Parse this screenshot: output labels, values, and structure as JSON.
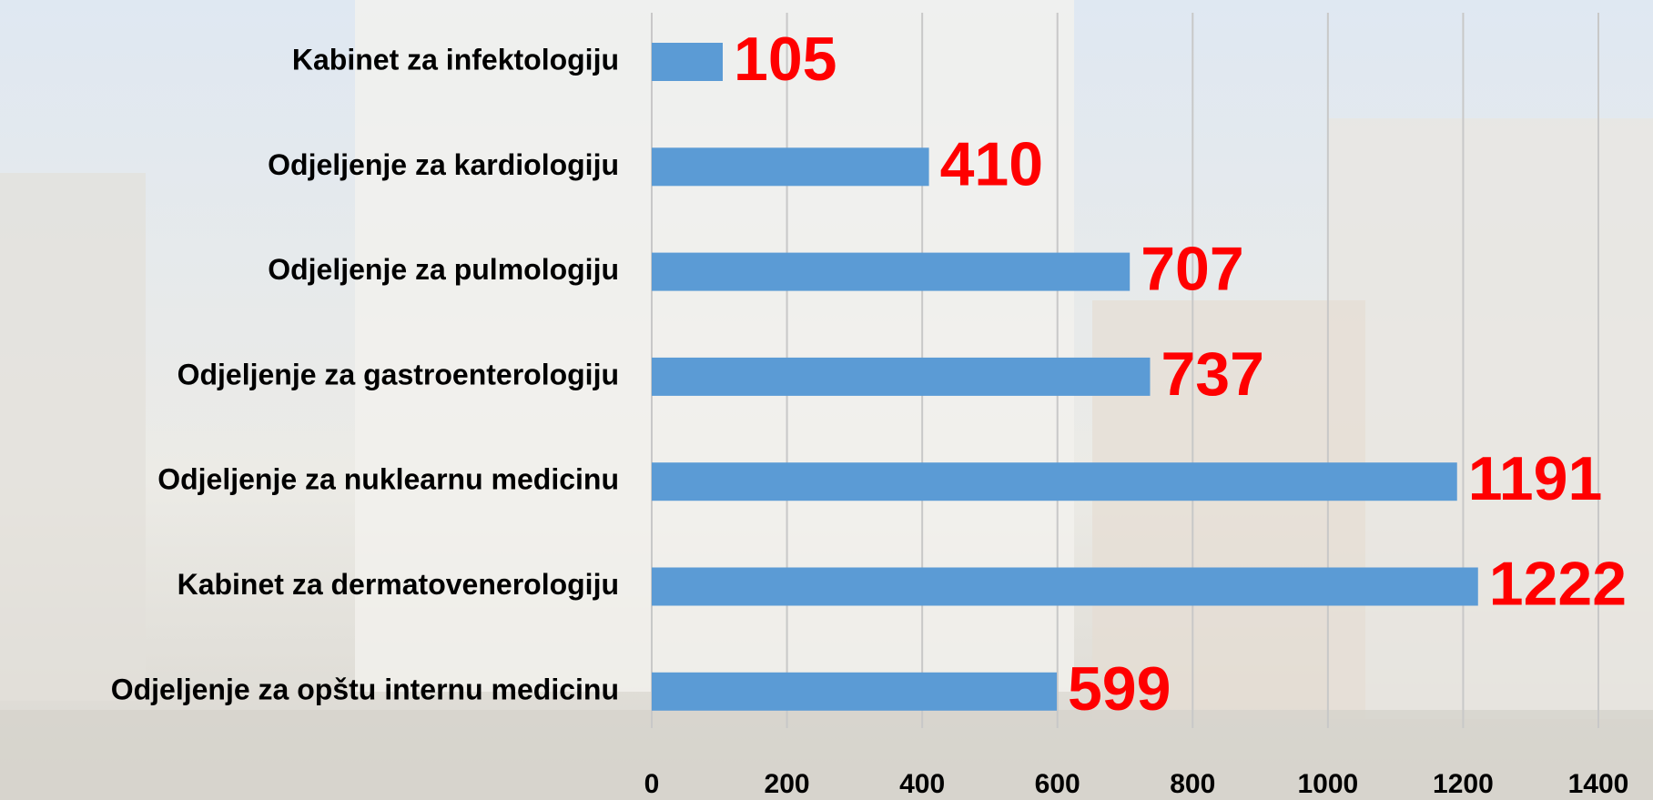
{
  "chart_data": {
    "type": "bar",
    "orientation": "horizontal",
    "categories": [
      "Kabinet za infektologiju",
      "Odjeljenje za kardiologiju",
      "Odjeljenje za pulmologiju",
      "Odjeljenje za gastroenterologiju",
      "Odjeljenje za nuklearnu medicinu",
      "Kabinet za dermatovenerologiju",
      "Odjeljenje za opštu internu medicinu"
    ],
    "values": [
      105,
      410,
      707,
      737,
      1191,
      1222,
      599
    ],
    "color": "#5b9bd5",
    "value_label_color": "#ff0000",
    "xlim": [
      0,
      1400
    ],
    "xticks": [
      0,
      200,
      400,
      600,
      800,
      1000,
      1200,
      1400
    ],
    "grid": true
  }
}
